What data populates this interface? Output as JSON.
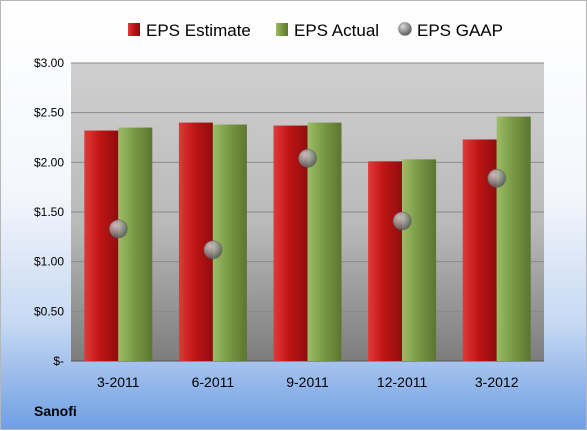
{
  "company": "Sanofi",
  "chart_data": {
    "type": "bar",
    "categories": [
      "3-2011",
      "6-2011",
      "9-2011",
      "12-2011",
      "3-2012"
    ],
    "series": [
      {
        "name": "EPS Estimate",
        "kind": "bar",
        "color": "#c81e1e",
        "values": [
          2.32,
          2.4,
          2.37,
          2.01,
          2.23
        ]
      },
      {
        "name": "EPS Actual",
        "kind": "bar",
        "color": "#7fa04a",
        "values": [
          2.35,
          2.38,
          2.4,
          2.03,
          2.46
        ]
      },
      {
        "name": "EPS GAAP",
        "kind": "scatter",
        "color": "#8c8c8c",
        "values": [
          1.33,
          1.12,
          2.04,
          1.41,
          1.84
        ]
      }
    ],
    "yticks": [
      "$-",
      "$0.50",
      "$1.00",
      "$1.50",
      "$2.00",
      "$2.50",
      "$3.00"
    ],
    "ylim": [
      0,
      3
    ],
    "grid": true,
    "legend": "top"
  }
}
